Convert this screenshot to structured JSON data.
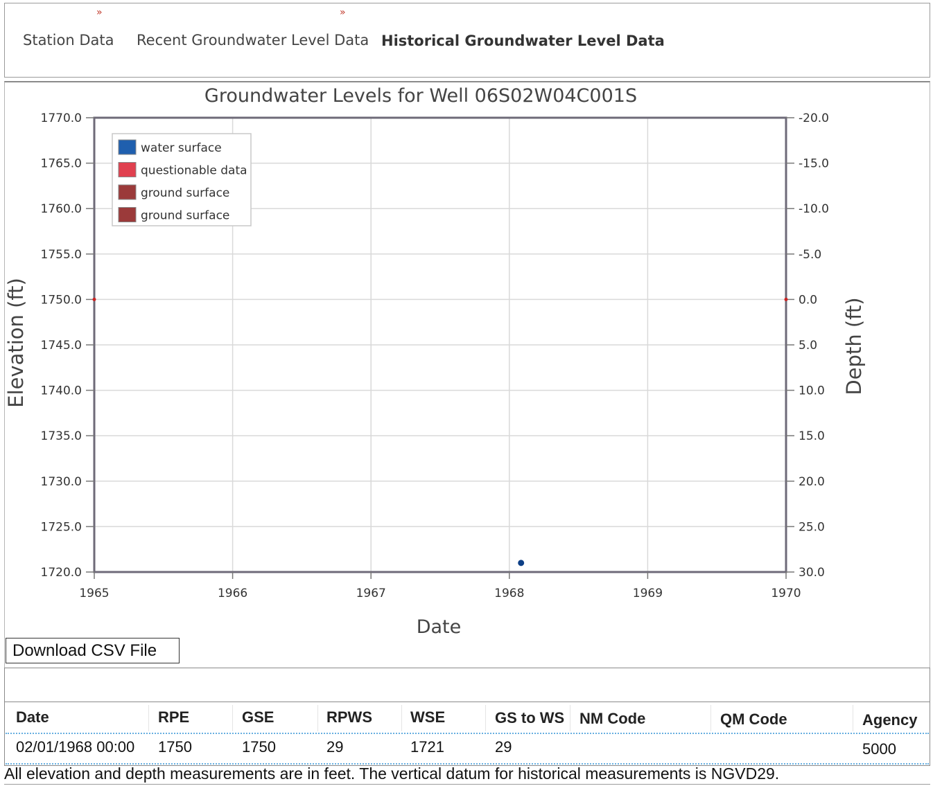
{
  "tabs": [
    {
      "label": "Station Data",
      "active": false
    },
    {
      "label": "Recent Groundwater Level Data",
      "active": false
    },
    {
      "label": "Historical Groundwater Level Data",
      "active": true
    }
  ],
  "tab_arrow_glyph": "»",
  "chart_data": {
    "type": "scatter",
    "title": "Groundwater Levels for Well 06S02W04C001S",
    "xlabel": "Date",
    "ylabel": "Elevation (ft)",
    "y2label": "Depth (ft)",
    "xlim": [
      1965,
      1970
    ],
    "ylim": [
      1720.0,
      1770.0
    ],
    "y2lim": [
      30.0,
      -20.0
    ],
    "x_ticks": [
      "1965",
      "1966",
      "1967",
      "1968",
      "1969",
      "1970"
    ],
    "y_ticks": [
      "1720.0",
      "1725.0",
      "1730.0",
      "1735.0",
      "1740.0",
      "1745.0",
      "1750.0",
      "1755.0",
      "1760.0",
      "1765.0",
      "1770.0"
    ],
    "y2_ticks": [
      "30.0",
      "25.0",
      "20.0",
      "15.0",
      "10.0",
      "5.0",
      "0.0",
      "-5.0",
      "-10.0",
      "-15.0",
      "-20.0"
    ],
    "grid": true,
    "legend_position": "top-left",
    "legend": [
      {
        "label": "water surface",
        "color": "#1f5fae"
      },
      {
        "label": "questionable data",
        "color": "#e0404f"
      },
      {
        "label": "ground surface",
        "color": "#9b3a3a"
      },
      {
        "label": "ground surface",
        "color": "#9b3a3a"
      }
    ],
    "series": [
      {
        "name": "water surface",
        "color": "#0d3f86",
        "points": [
          {
            "date": "1968-02-01",
            "elevation": 1721
          }
        ]
      },
      {
        "name": "ground surface",
        "color": "#cc2222",
        "value": 1750
      }
    ]
  },
  "download_label": "Download CSV File",
  "table": {
    "headers": [
      "Date",
      "RPE",
      "GSE",
      "RPWS",
      "WSE",
      "GS to WS",
      "NM Code",
      "QM Code",
      "Agency"
    ],
    "rows": [
      [
        "02/01/1968 00:00",
        "1750",
        "1750",
        "29",
        "1721",
        "29",
        "",
        "",
        "5000"
      ]
    ]
  },
  "footnote": "All elevation and depth measurements are in feet. The vertical datum for historical measurements is NGVD29."
}
